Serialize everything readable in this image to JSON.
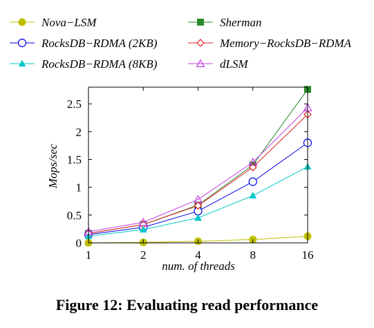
{
  "caption": "Figure 12: Evaluating read performance",
  "chart_data": {
    "type": "line",
    "title": "",
    "xlabel": "num. of threads",
    "ylabel": "Mops/sec",
    "x": [
      1,
      2,
      4,
      8,
      16
    ],
    "x_scale": "log2",
    "xticks": [
      "1",
      "2",
      "4",
      "8",
      "16"
    ],
    "ylim": [
      0,
      2.8
    ],
    "yticks": [
      "0",
      "0.5",
      "1",
      "1.5",
      "2",
      "2.5"
    ],
    "grid": false,
    "legend": "top, two columns above plot",
    "series": [
      {
        "name": "Nova−LSM",
        "color": "#bfbf00",
        "marker": "filled-circle",
        "values": [
          0.0,
          0.01,
          0.03,
          0.06,
          0.12
        ]
      },
      {
        "name": "Sherman",
        "color": "#2a8a2a",
        "marker": "filled-square",
        "values": [
          0.17,
          0.33,
          0.68,
          1.4,
          2.76
        ]
      },
      {
        "name": "RocksDB−RDMA (2KB)",
        "color": "#0000ee",
        "marker": "open-circle",
        "values": [
          0.15,
          0.28,
          0.57,
          1.1,
          1.8
        ]
      },
      {
        "name": "Memory−RocksDB−RDMA",
        "color": "#e02020",
        "marker": "open-diamond",
        "values": [
          0.17,
          0.33,
          0.67,
          1.36,
          2.31
        ]
      },
      {
        "name": "RocksDB−RDMA (8KB)",
        "color": "#00c8c8",
        "marker": "filled-triangle",
        "values": [
          0.12,
          0.24,
          0.45,
          0.85,
          1.37
        ]
      },
      {
        "name": "dLSM",
        "color": "#c040e0",
        "marker": "open-triangle",
        "values": [
          0.2,
          0.37,
          0.78,
          1.45,
          2.43
        ]
      }
    ]
  }
}
